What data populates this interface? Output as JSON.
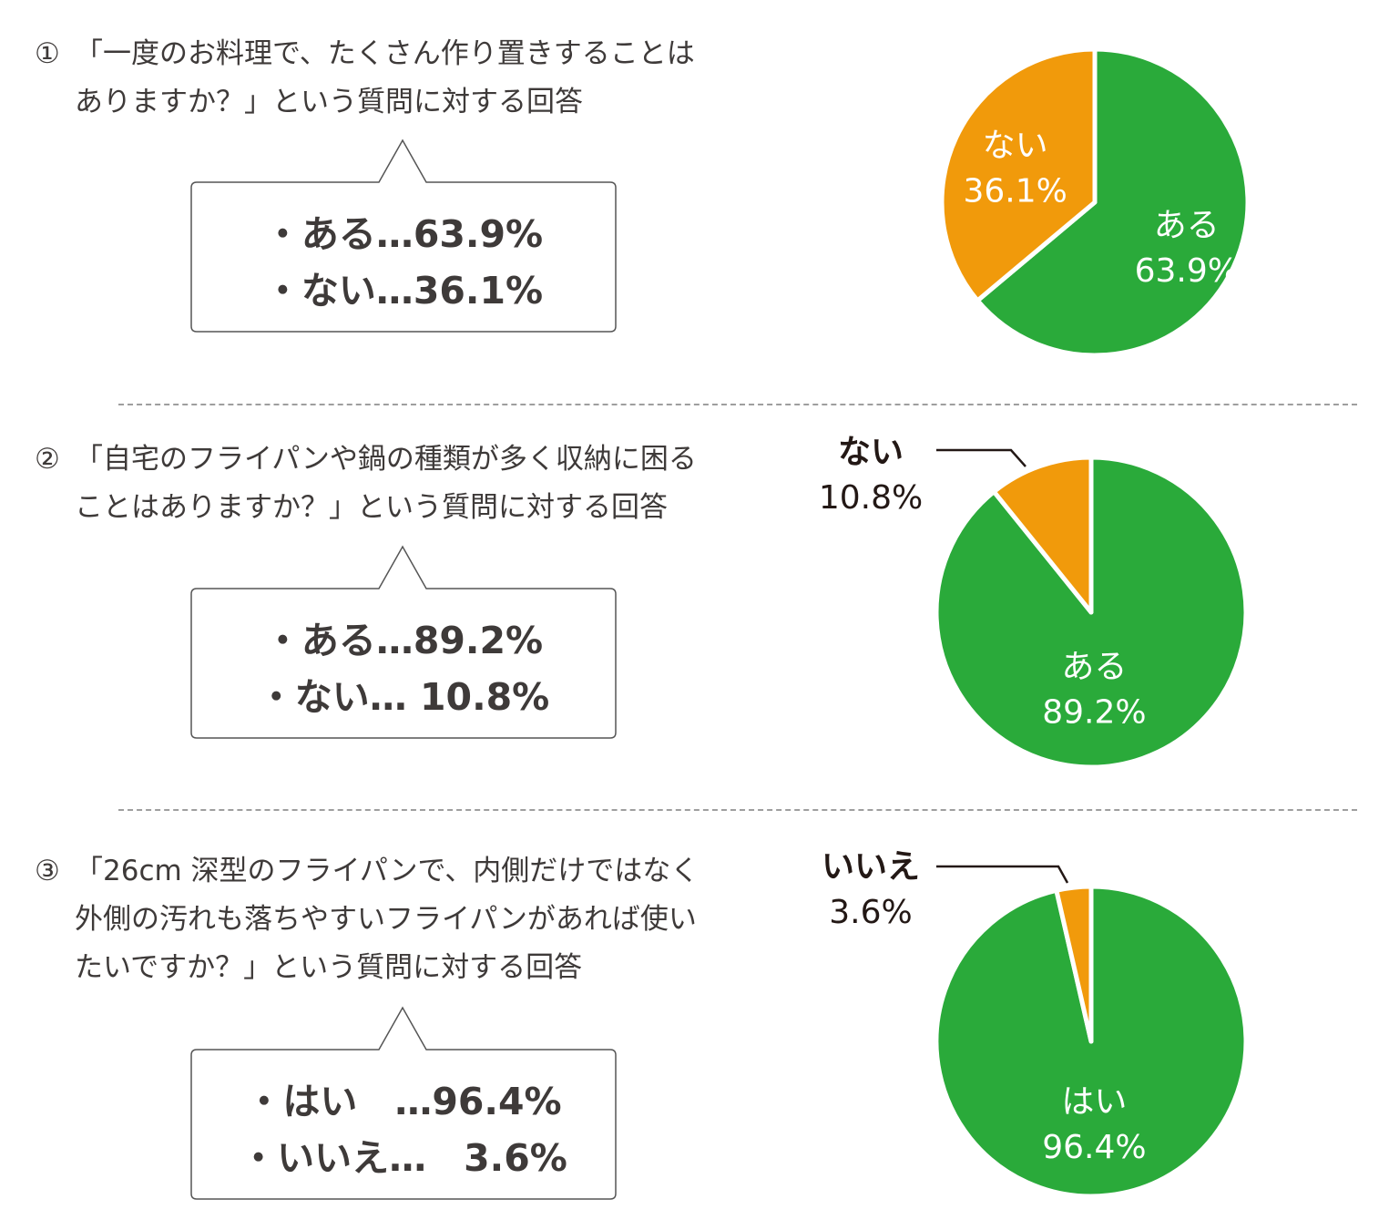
{
  "colors": {
    "green": "#2aaa3a",
    "orange": "#f19a0b",
    "text": "#3e3a39",
    "label_outside": "#231815"
  },
  "sections": [
    {
      "number": "①",
      "question_lines": [
        "「一度のお料理で、たくさん作り置きすることは",
        "ありますか？」という質問に対する回答"
      ],
      "answers": [
        "・ある…63.9%",
        "・ない…36.1%"
      ]
    },
    {
      "number": "②",
      "question_lines": [
        "「自宅のフライパンや鍋の種類が多く収納に困る",
        "ことはありますか？」という質問に対する回答"
      ],
      "answers": [
        "・ある…89.2%",
        "・ない… 10.8%"
      ]
    },
    {
      "number": "③",
      "question_lines": [
        "「26cm 深型のフライパンで、内側だけではなく",
        "外側の汚れも落ちやすいフライパンがあれば使い",
        "たいですか？」という質問に対する回答"
      ],
      "answers": [
        "・はい　…96.4%",
        "・いいえ…　3.6%"
      ]
    }
  ],
  "chart_data": [
    {
      "type": "pie",
      "slices": [
        {
          "label": "ある",
          "value": 63.9,
          "value_label": "63.9%",
          "color": "#2aaa3a"
        },
        {
          "label": "ない",
          "value": 36.1,
          "value_label": "36.1%",
          "color": "#f19a0b"
        }
      ]
    },
    {
      "type": "pie",
      "slices": [
        {
          "label": "ある",
          "value": 89.2,
          "value_label": "89.2%",
          "color": "#2aaa3a"
        },
        {
          "label": "ない",
          "value": 10.8,
          "value_label": "10.8%",
          "color": "#f19a0b"
        }
      ]
    },
    {
      "type": "pie",
      "slices": [
        {
          "label": "はい",
          "value": 96.4,
          "value_label": "96.4%",
          "color": "#2aaa3a"
        },
        {
          "label": "いいえ",
          "value": 3.6,
          "value_label": "3.6%",
          "color": "#f19a0b"
        }
      ]
    }
  ]
}
